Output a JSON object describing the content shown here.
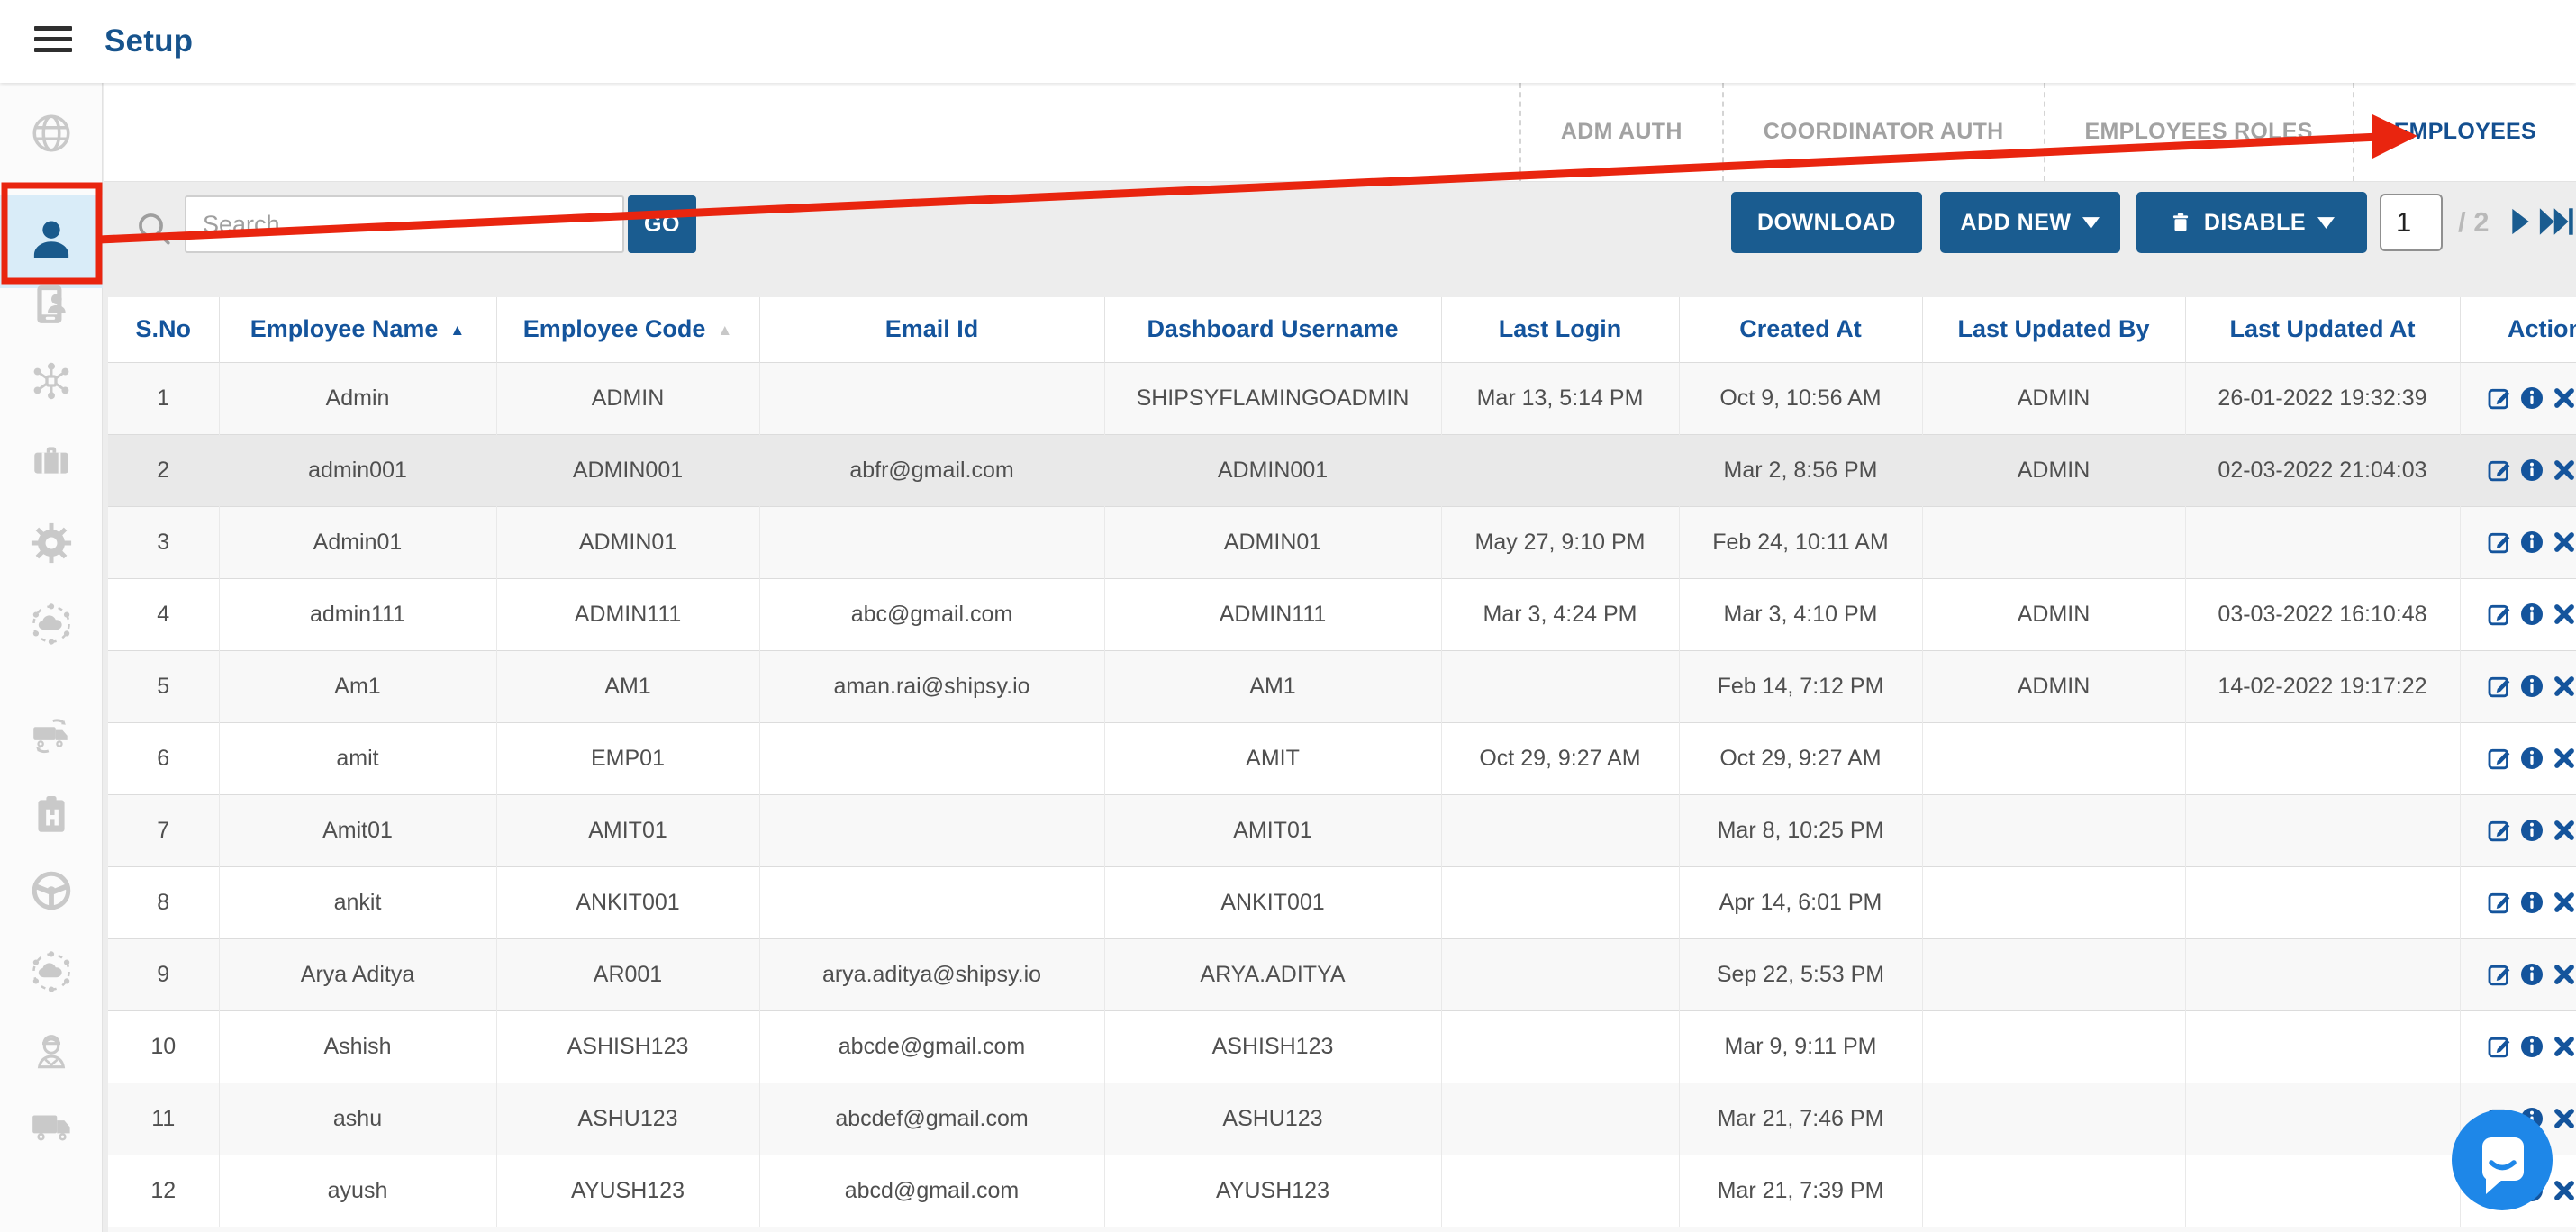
{
  "app": {
    "title": "Setup"
  },
  "sidebar": {
    "items": [
      {
        "icon": "globe",
        "active": false
      },
      {
        "icon": "employees-person",
        "active": true
      },
      {
        "icon": "mobile-user",
        "active": false
      },
      {
        "icon": "network-hub",
        "active": false
      },
      {
        "icon": "briefcase",
        "active": false
      },
      {
        "icon": "settings-gear",
        "active": false
      },
      {
        "icon": "cloud-sync",
        "active": false
      },
      {
        "icon": "truck-return",
        "active": false
      },
      {
        "icon": "clipboard-h",
        "active": false
      },
      {
        "icon": "steering-wheel",
        "active": false
      },
      {
        "icon": "cloud-sync",
        "active": false
      },
      {
        "icon": "delivery-worker",
        "active": false
      },
      {
        "icon": "delivery-truck",
        "active": false
      }
    ]
  },
  "tabs": [
    {
      "label": "ADM AUTH",
      "active": false
    },
    {
      "label": "COORDINATOR AUTH",
      "active": false
    },
    {
      "label": "EMPLOYEES ROLES",
      "active": false
    },
    {
      "label": "EMPLOYEES",
      "active": true
    }
  ],
  "toolbar": {
    "search_placeholder": "Search",
    "go": "GO",
    "download": "DOWNLOAD",
    "add_new": "ADD NEW",
    "disable": "DISABLE",
    "page_current": "1",
    "page_total_label": "/ 2"
  },
  "table": {
    "columns": [
      {
        "label": "S.No",
        "sort": "none"
      },
      {
        "label": "Employee Name",
        "sort": "active"
      },
      {
        "label": "Employee Code",
        "sort": "idle"
      },
      {
        "label": "Email Id",
        "sort": "none"
      },
      {
        "label": "Dashboard Username",
        "sort": "none"
      },
      {
        "label": "Last Login",
        "sort": "none"
      },
      {
        "label": "Created At",
        "sort": "none"
      },
      {
        "label": "Last Updated By",
        "sort": "none"
      },
      {
        "label": "Last Updated At",
        "sort": "none"
      },
      {
        "label": "Action",
        "sort": "none"
      }
    ],
    "action_icons": [
      "edit",
      "info",
      "remove"
    ],
    "rows": [
      {
        "highlight": false,
        "cells": [
          "1",
          "Admin",
          "ADMIN",
          "",
          "SHIPSYFLAMINGOADMIN",
          "Mar 13, 5:14 PM",
          "Oct 9, 10:56 AM",
          "ADMIN",
          "26-01-2022 19:32:39"
        ]
      },
      {
        "highlight": true,
        "cells": [
          "2",
          "admin001",
          "ADMIN001",
          "abfr@gmail.com",
          "ADMIN001",
          "",
          "Mar 2, 8:56 PM",
          "ADMIN",
          "02-03-2022 21:04:03"
        ]
      },
      {
        "highlight": false,
        "cells": [
          "3",
          "Admin01",
          "ADMIN01",
          "",
          "ADMIN01",
          "May 27, 9:10 PM",
          "Feb 24, 10:11 AM",
          "",
          ""
        ]
      },
      {
        "highlight": false,
        "cells": [
          "4",
          "admin111",
          "ADMIN111",
          "abc@gmail.com",
          "ADMIN111",
          "Mar 3, 4:24 PM",
          "Mar 3, 4:10 PM",
          "ADMIN",
          "03-03-2022 16:10:48"
        ]
      },
      {
        "highlight": false,
        "cells": [
          "5",
          "Am1",
          "AM1",
          "aman.rai@shipsy.io",
          "AM1",
          "",
          "Feb 14, 7:12 PM",
          "ADMIN",
          "14-02-2022 19:17:22"
        ]
      },
      {
        "highlight": false,
        "cells": [
          "6",
          "amit",
          "EMP01",
          "",
          "AMIT",
          "Oct 29, 9:27 AM",
          "Oct 29, 9:27 AM",
          "",
          ""
        ]
      },
      {
        "highlight": false,
        "cells": [
          "7",
          "Amit01",
          "AMIT01",
          "",
          "AMIT01",
          "",
          "Mar 8, 10:25 PM",
          "",
          ""
        ]
      },
      {
        "highlight": false,
        "cells": [
          "8",
          "ankit",
          "ANKIT001",
          "",
          "ANKIT001",
          "",
          "Apr 14, 6:01 PM",
          "",
          ""
        ]
      },
      {
        "highlight": false,
        "cells": [
          "9",
          "Arya Aditya",
          "AR001",
          "arya.aditya@shipsy.io",
          "ARYA.ADITYA",
          "",
          "Sep 22, 5:53 PM",
          "",
          ""
        ]
      },
      {
        "highlight": false,
        "cells": [
          "10",
          "Ashish",
          "ASHISH123",
          "abcde@gmail.com",
          "ASHISH123",
          "",
          "Mar 9, 9:11 PM",
          "",
          ""
        ]
      },
      {
        "highlight": false,
        "cells": [
          "11",
          "ashu",
          "ASHU123",
          "abcdef@gmail.com",
          "ASHU123",
          "",
          "Mar 21, 7:46 PM",
          "",
          ""
        ]
      },
      {
        "highlight": false,
        "cells": [
          "12",
          "ayush",
          "AYUSH123",
          "abcd@gmail.com",
          "AYUSH123",
          "",
          "Mar 21, 7:39 PM",
          "",
          ""
        ]
      }
    ]
  },
  "annotation": {
    "description": "red box around employees sidebar icon with arrow pointing to EMPLOYEES tab",
    "color": "#e9250f"
  },
  "colors": {
    "primary_blue": "#1a5c90",
    "header_text_blue": "#14549c",
    "tab_active_blue": "#134f90",
    "annotation_red": "#e9250f",
    "chat_blue": "#1e87e8",
    "row_highlight": "#e9e9e9",
    "sidebar_active_bg": "#d9ecf8"
  }
}
